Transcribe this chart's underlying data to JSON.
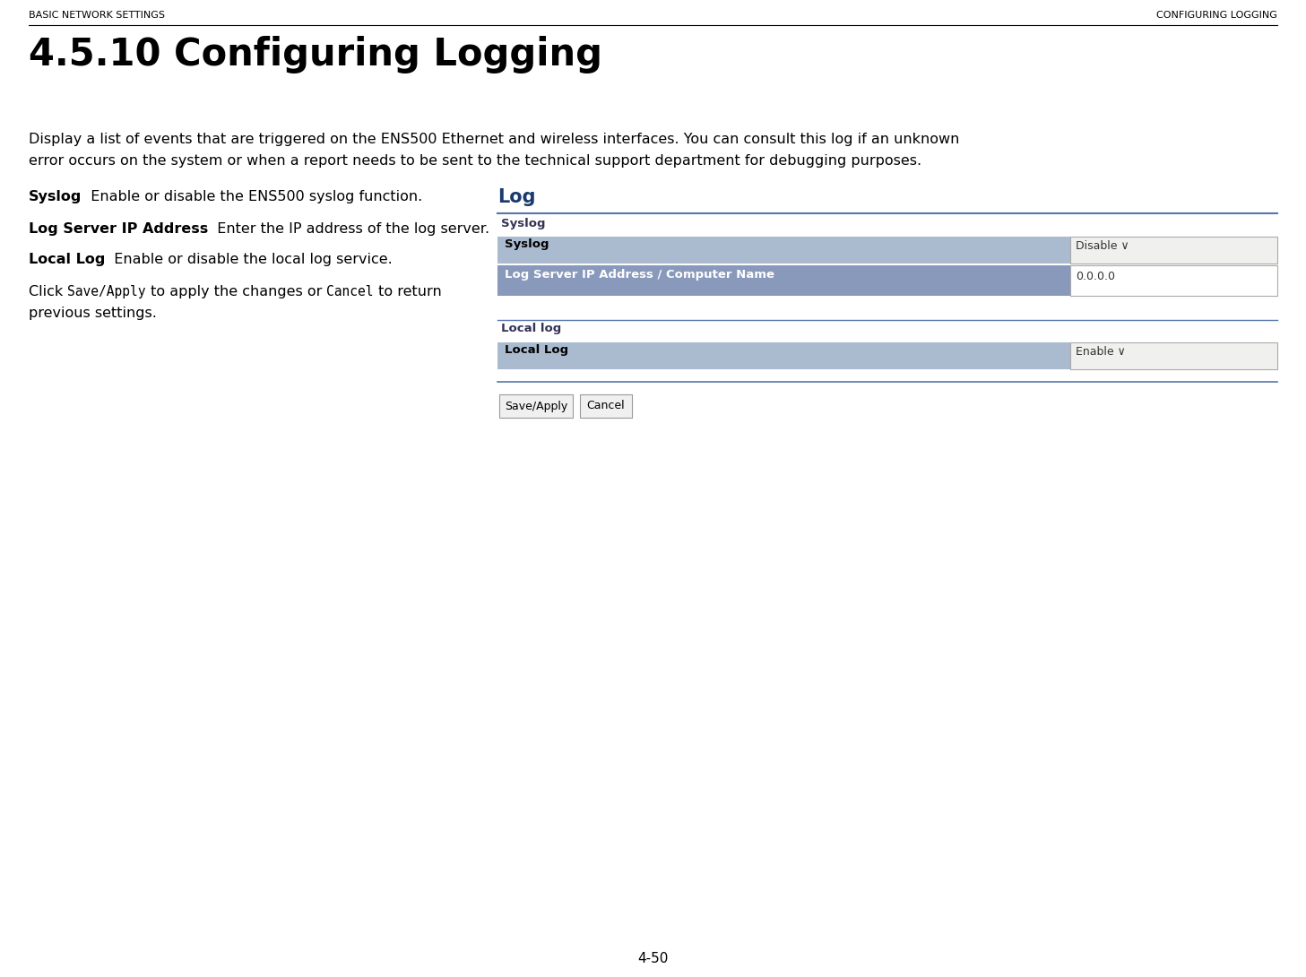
{
  "header_left": "BASIC NETWORK SETTINGS",
  "header_right": "CONFIGURING LOGGING",
  "title": "4.5.10 Configuring Logging",
  "body_line1": "Display a list of events that are triggered on the ENS500 Ethernet and wireless interfaces. You can consult this log if an unknown",
  "body_line2": "error occurs on the system or when a report needs to be sent to the technical support department for debugging purposes.",
  "items": [
    {
      "label": "Syslog",
      "desc": "  Enable or disable the ENS500 syslog function."
    },
    {
      "label": "Log Server IP Address",
      "desc": "  Enter the IP address of the log server."
    },
    {
      "label": "Local Log",
      "desc": "  Enable or disable the local log service."
    }
  ],
  "click_normal1": "Click ",
  "click_mono1": "Save/Apply",
  "click_normal2": " to apply the changes or ",
  "click_mono2": "Cancel",
  "click_normal3": " to return",
  "click_line2": "previous settings.",
  "log_title": "Log",
  "log_title_color": "#1a3a6e",
  "syslog_section_label": "Syslog",
  "syslog_row_label": "Syslog",
  "syslog_value": "Disable",
  "ip_row_label": "Log Server IP Address / Computer Name",
  "ip_value": "0.0.0.0",
  "locallog_section_label": "Local log",
  "locallog_row_label": "Local Log",
  "locallog_value": "Enable",
  "btn_save": "Save/Apply",
  "btn_cancel": "Cancel",
  "footer": "4-50",
  "bg_color": "#ffffff",
  "header_text_color": "#000000",
  "title_color": "#000000",
  "body_color": "#000000",
  "border_color": "#5577aa",
  "row_light_bg": "#aabbd0",
  "row_dark_bg": "#8899bb",
  "row_dark_text": "#ffffff",
  "row_light_text": "#000000",
  "section_label_color": "#333355",
  "dropdown_bg": "#f0f0ee",
  "dropdown_border": "#aaaaaa",
  "btn_bg": "#f0f0f0",
  "btn_border": "#999999",
  "input_bg": "#ffffff",
  "input_border": "#aaaaaa"
}
